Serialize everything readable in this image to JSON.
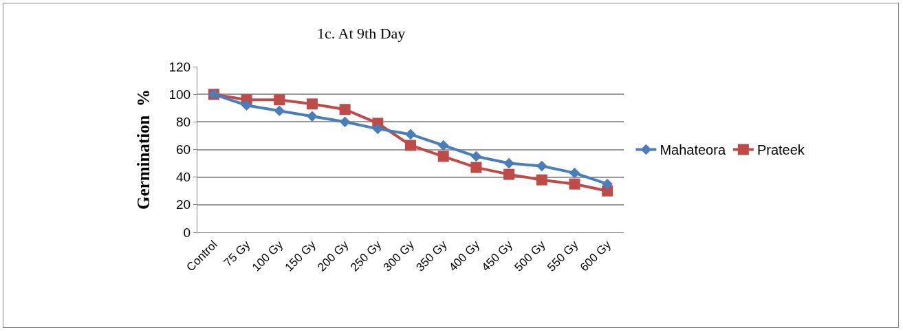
{
  "chart_data": {
    "type": "line",
    "title": "1c. At 9th Day",
    "ylabel": "Germination  %",
    "categories": [
      "Control",
      "75 Gy",
      "100 Gy",
      "150 Gy",
      "200 Gy",
      "250 Gy",
      "300 Gy",
      "350 Gy",
      "400 Gy",
      "450 Gy",
      "500 Gy",
      "550 Gy",
      "600 Gy"
    ],
    "series": [
      {
        "name": "Mahateora",
        "color": "#4a7ebb",
        "marker": "diamond",
        "values": [
          100,
          92,
          88,
          84,
          80,
          75,
          71,
          63,
          55,
          50,
          48,
          43,
          35
        ]
      },
      {
        "name": "Prateek",
        "color": "#be4b48",
        "marker": "square",
        "values": [
          100,
          96,
          96,
          93,
          89,
          79,
          63,
          55,
          47,
          42,
          38,
          35,
          30
        ]
      }
    ],
    "ylim": [
      0,
      120
    ],
    "yticks": [
      0,
      20,
      40,
      60,
      80,
      100,
      120
    ],
    "grid": "y",
    "legend": "right",
    "line_style": "solid"
  }
}
